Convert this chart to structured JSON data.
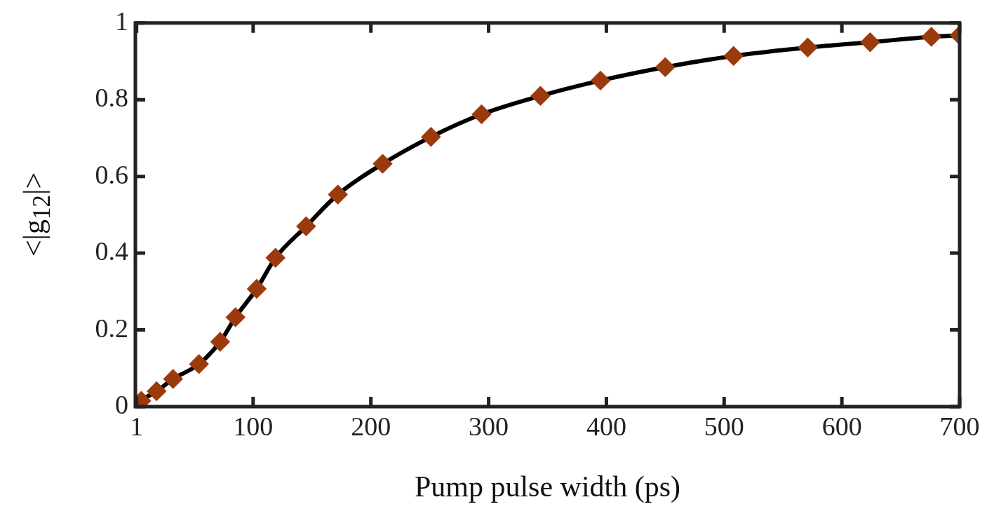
{
  "chart_data": {
    "type": "line",
    "xlabel": "Pump pulse width (ps)",
    "ylabel": "<|g$_{12}$|>",
    "x": [
      1,
      5,
      18,
      32,
      54,
      72,
      85,
      103,
      119,
      145,
      172,
      210,
      251,
      294,
      344,
      395,
      450,
      508,
      571,
      624,
      676,
      700
    ],
    "series": [
      {
        "color": "#9b3a0c",
        "values": [
          0,
          0.015,
          0.04,
          0.072,
          0.111,
          0.169,
          0.233,
          0.307,
          0.388,
          0.47,
          0.553,
          0.633,
          0.703,
          0.762,
          0.81,
          0.85,
          0.885,
          0.914,
          0.936,
          0.95,
          0.964,
          0.968
        ]
      }
    ],
    "xlim": [
      0,
      700
    ],
    "xticks": [
      1,
      100,
      200,
      300,
      400,
      500,
      600,
      700
    ],
    "ylim": [
      0,
      1
    ],
    "yticks": [
      0,
      0.2,
      0.4,
      0.6,
      0.8,
      1
    ],
    "grid": false,
    "legend": false,
    "marker": "diamond",
    "line_style": "solid"
  }
}
